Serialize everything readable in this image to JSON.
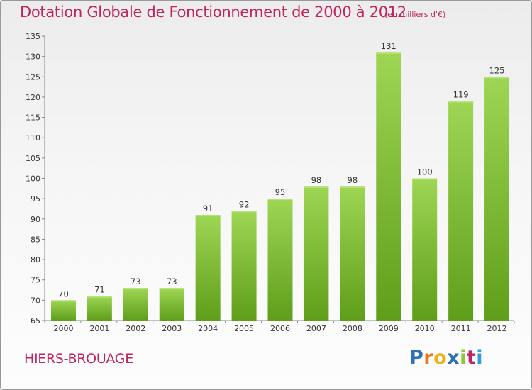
{
  "title": "Dotation Globale de Fonctionnement de 2000 à 2012",
  "unit_note": "(en milliers d'€)",
  "commune": "HIERS-BROUAGE",
  "logo": {
    "letters": [
      "P",
      "r",
      "o",
      "x",
      "i",
      "t",
      "i"
    ],
    "colors": [
      "#2f6fb5",
      "#e8781a",
      "#f0b01a",
      "#2f6fb5",
      "#8cc63f",
      "#c0245f",
      "#2f9fd8"
    ]
  },
  "colors": {
    "title": "#c0245f",
    "bar_top": "#9ed654",
    "bar_bottom": "#5f9e1a",
    "axis": "#888888",
    "grid": "#bbbbbb"
  },
  "chart_data": {
    "type": "bar",
    "title": "Dotation Globale de Fonctionnement de 2000 à 2012",
    "xlabel": "",
    "ylabel": "",
    "categories": [
      "2000",
      "2001",
      "2002",
      "2003",
      "2004",
      "2005",
      "2006",
      "2007",
      "2008",
      "2009",
      "2010",
      "2011",
      "2012"
    ],
    "values": [
      70,
      71,
      73,
      73,
      91,
      92,
      95,
      98,
      98,
      131,
      100,
      119,
      125
    ],
    "ylim": [
      65,
      135
    ],
    "yticks": [
      65,
      70,
      75,
      80,
      85,
      90,
      95,
      100,
      105,
      110,
      115,
      120,
      125,
      130,
      135
    ],
    "grid": false,
    "legend": "none"
  }
}
